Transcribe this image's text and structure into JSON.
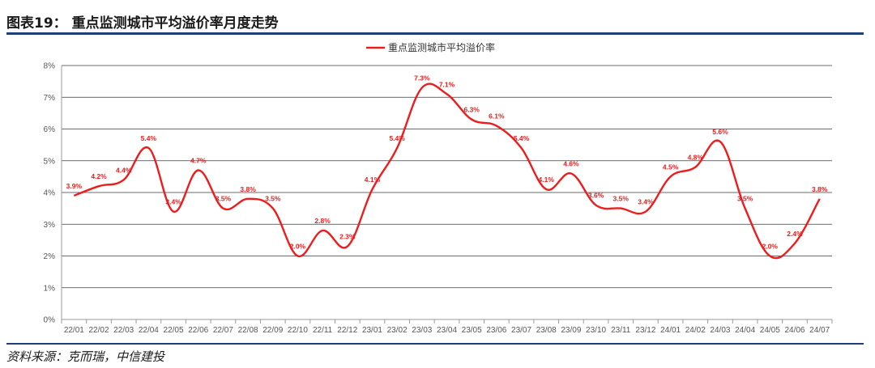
{
  "header": {
    "title": "图表19：  重点监测城市平均溢价率月度走势"
  },
  "footer": {
    "source": "资料来源：克而瑞，中信建投"
  },
  "colors": {
    "series": "#ee1c1c",
    "grid": "#3a3a3a",
    "rule": "#1f3f7a"
  },
  "chart_data": {
    "type": "line",
    "title": "",
    "xlabel": "",
    "ylabel": "",
    "ylim": [
      0,
      8
    ],
    "y_ticks": [
      "0%",
      "1%",
      "2%",
      "3%",
      "4%",
      "5%",
      "6%",
      "7%",
      "8%"
    ],
    "grid": true,
    "legend_position": "top-center",
    "categories": [
      "22/01",
      "22/02",
      "22/03",
      "22/04",
      "22/05",
      "22/06",
      "22/07",
      "22/08",
      "22/09",
      "22/10",
      "22/11",
      "22/12",
      "23/01",
      "23/02",
      "23/03",
      "23/04",
      "23/05",
      "23/06",
      "23/07",
      "23/08",
      "23/09",
      "23/10",
      "23/11",
      "23/12",
      "24/01",
      "24/02",
      "24/03",
      "24/04",
      "24/05",
      "24/06",
      "24/07"
    ],
    "series": [
      {
        "name": "重点监测城市平均溢价率",
        "values": [
          3.9,
          4.2,
          4.4,
          5.4,
          3.4,
          4.7,
          3.5,
          3.8,
          3.5,
          2.0,
          2.8,
          2.3,
          4.1,
          5.4,
          7.3,
          7.1,
          6.3,
          6.1,
          5.4,
          4.1,
          4.6,
          3.6,
          3.5,
          3.4,
          4.5,
          4.8,
          5.6,
          3.5,
          2.0,
          2.4,
          3.8
        ],
        "labels": [
          "3.9%",
          "4.2%",
          "4.4%",
          "5.4%",
          "3.4%",
          "4.7%",
          "3.5%",
          "3.8%",
          "3.5%",
          "2.0%",
          "2.8%",
          "2.3%",
          "4.1%",
          "5.4%",
          "7.3%",
          "7.1%",
          "6.3%",
          "6.1%",
          "5.4%",
          "4.1%",
          "4.6%",
          "3.6%",
          "3.5%",
          "3.4%",
          "4.5%",
          "4.8%",
          "5.6%",
          "3.5%",
          "2.0%",
          "2.4%",
          "3.8%"
        ]
      }
    ]
  }
}
